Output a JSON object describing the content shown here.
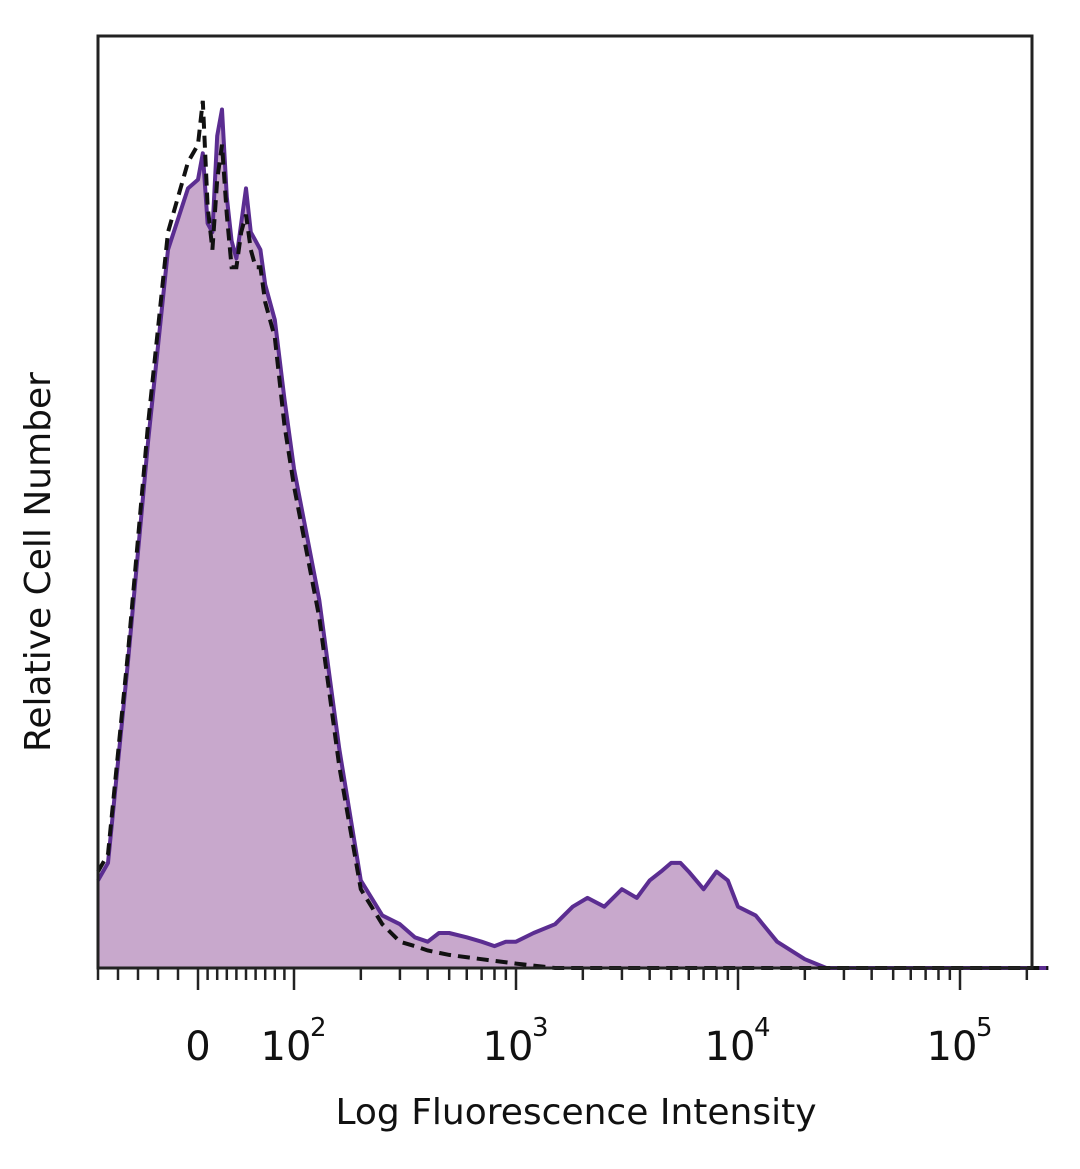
{
  "chart_data": {
    "type": "area",
    "xlabel": "Log Fluorescence Intensity",
    "ylabel": "Relative Cell Number",
    "x_scale": "biexponential",
    "xlim": [
      -50,
      250000
    ],
    "ylim": [
      0,
      1
    ],
    "grid": false,
    "legend": "none",
    "x_ticks": [
      {
        "value": 0,
        "base": "0",
        "exp": ""
      },
      {
        "value": 100,
        "base": "10",
        "exp": "2"
      },
      {
        "value": 1000,
        "base": "10",
        "exp": "3"
      },
      {
        "value": 10000,
        "base": "10",
        "exp": "4"
      },
      {
        "value": 100000,
        "base": "10",
        "exp": "5"
      }
    ],
    "colors": {
      "stained_fill": "#c8a8cc",
      "stained_line": "#5b2d91",
      "control_line": "#111111",
      "frame": "#222222"
    },
    "series": [
      {
        "style": "filled-solid",
        "x": [
          -50,
          -45,
          -35,
          -25,
          -15,
          -5,
          0,
          5,
          10,
          15,
          20,
          25,
          30,
          35,
          40,
          45,
          50,
          55,
          60,
          65,
          70,
          80,
          90,
          100,
          130,
          160,
          200,
          250,
          300,
          350,
          400,
          450,
          500,
          600,
          700,
          800,
          900,
          1000,
          1200,
          1500,
          1800,
          2100,
          2500,
          3000,
          3500,
          4000,
          4500,
          5000,
          5500,
          6000,
          7000,
          8000,
          9000,
          10000,
          12000,
          15000,
          20000,
          25000,
          30000,
          50000,
          100000,
          250000
        ],
        "values": [
          0.1,
          0.12,
          0.35,
          0.6,
          0.82,
          0.89,
          0.9,
          0.93,
          0.85,
          0.84,
          0.95,
          0.98,
          0.88,
          0.83,
          0.81,
          0.85,
          0.89,
          0.84,
          0.83,
          0.82,
          0.78,
          0.74,
          0.65,
          0.57,
          0.42,
          0.25,
          0.1,
          0.06,
          0.05,
          0.035,
          0.03,
          0.04,
          0.04,
          0.035,
          0.03,
          0.025,
          0.03,
          0.03,
          0.04,
          0.05,
          0.07,
          0.08,
          0.07,
          0.09,
          0.08,
          0.1,
          0.11,
          0.12,
          0.12,
          0.11,
          0.09,
          0.11,
          0.1,
          0.07,
          0.06,
          0.03,
          0.01,
          0.0,
          0.0,
          0.0,
          0.0,
          0.0
        ]
      },
      {
        "style": "dashed",
        "x": [
          -50,
          -45,
          -35,
          -25,
          -15,
          -5,
          0,
          5,
          10,
          15,
          20,
          25,
          30,
          35,
          40,
          45,
          50,
          55,
          60,
          65,
          70,
          80,
          90,
          100,
          130,
          160,
          200,
          250,
          300,
          350,
          400,
          500,
          700,
          1000,
          1500,
          2000,
          3000,
          5000,
          10000,
          20000,
          50000,
          250000
        ],
        "values": [
          0.11,
          0.13,
          0.36,
          0.62,
          0.84,
          0.92,
          0.94,
          0.99,
          0.87,
          0.82,
          0.9,
          0.94,
          0.86,
          0.8,
          0.8,
          0.84,
          0.86,
          0.82,
          0.8,
          0.8,
          0.76,
          0.72,
          0.62,
          0.55,
          0.4,
          0.23,
          0.09,
          0.05,
          0.03,
          0.025,
          0.02,
          0.015,
          0.01,
          0.005,
          0.0,
          0.0,
          0.0,
          0.0,
          0.0,
          0.0,
          0.0,
          0.0
        ]
      }
    ]
  }
}
